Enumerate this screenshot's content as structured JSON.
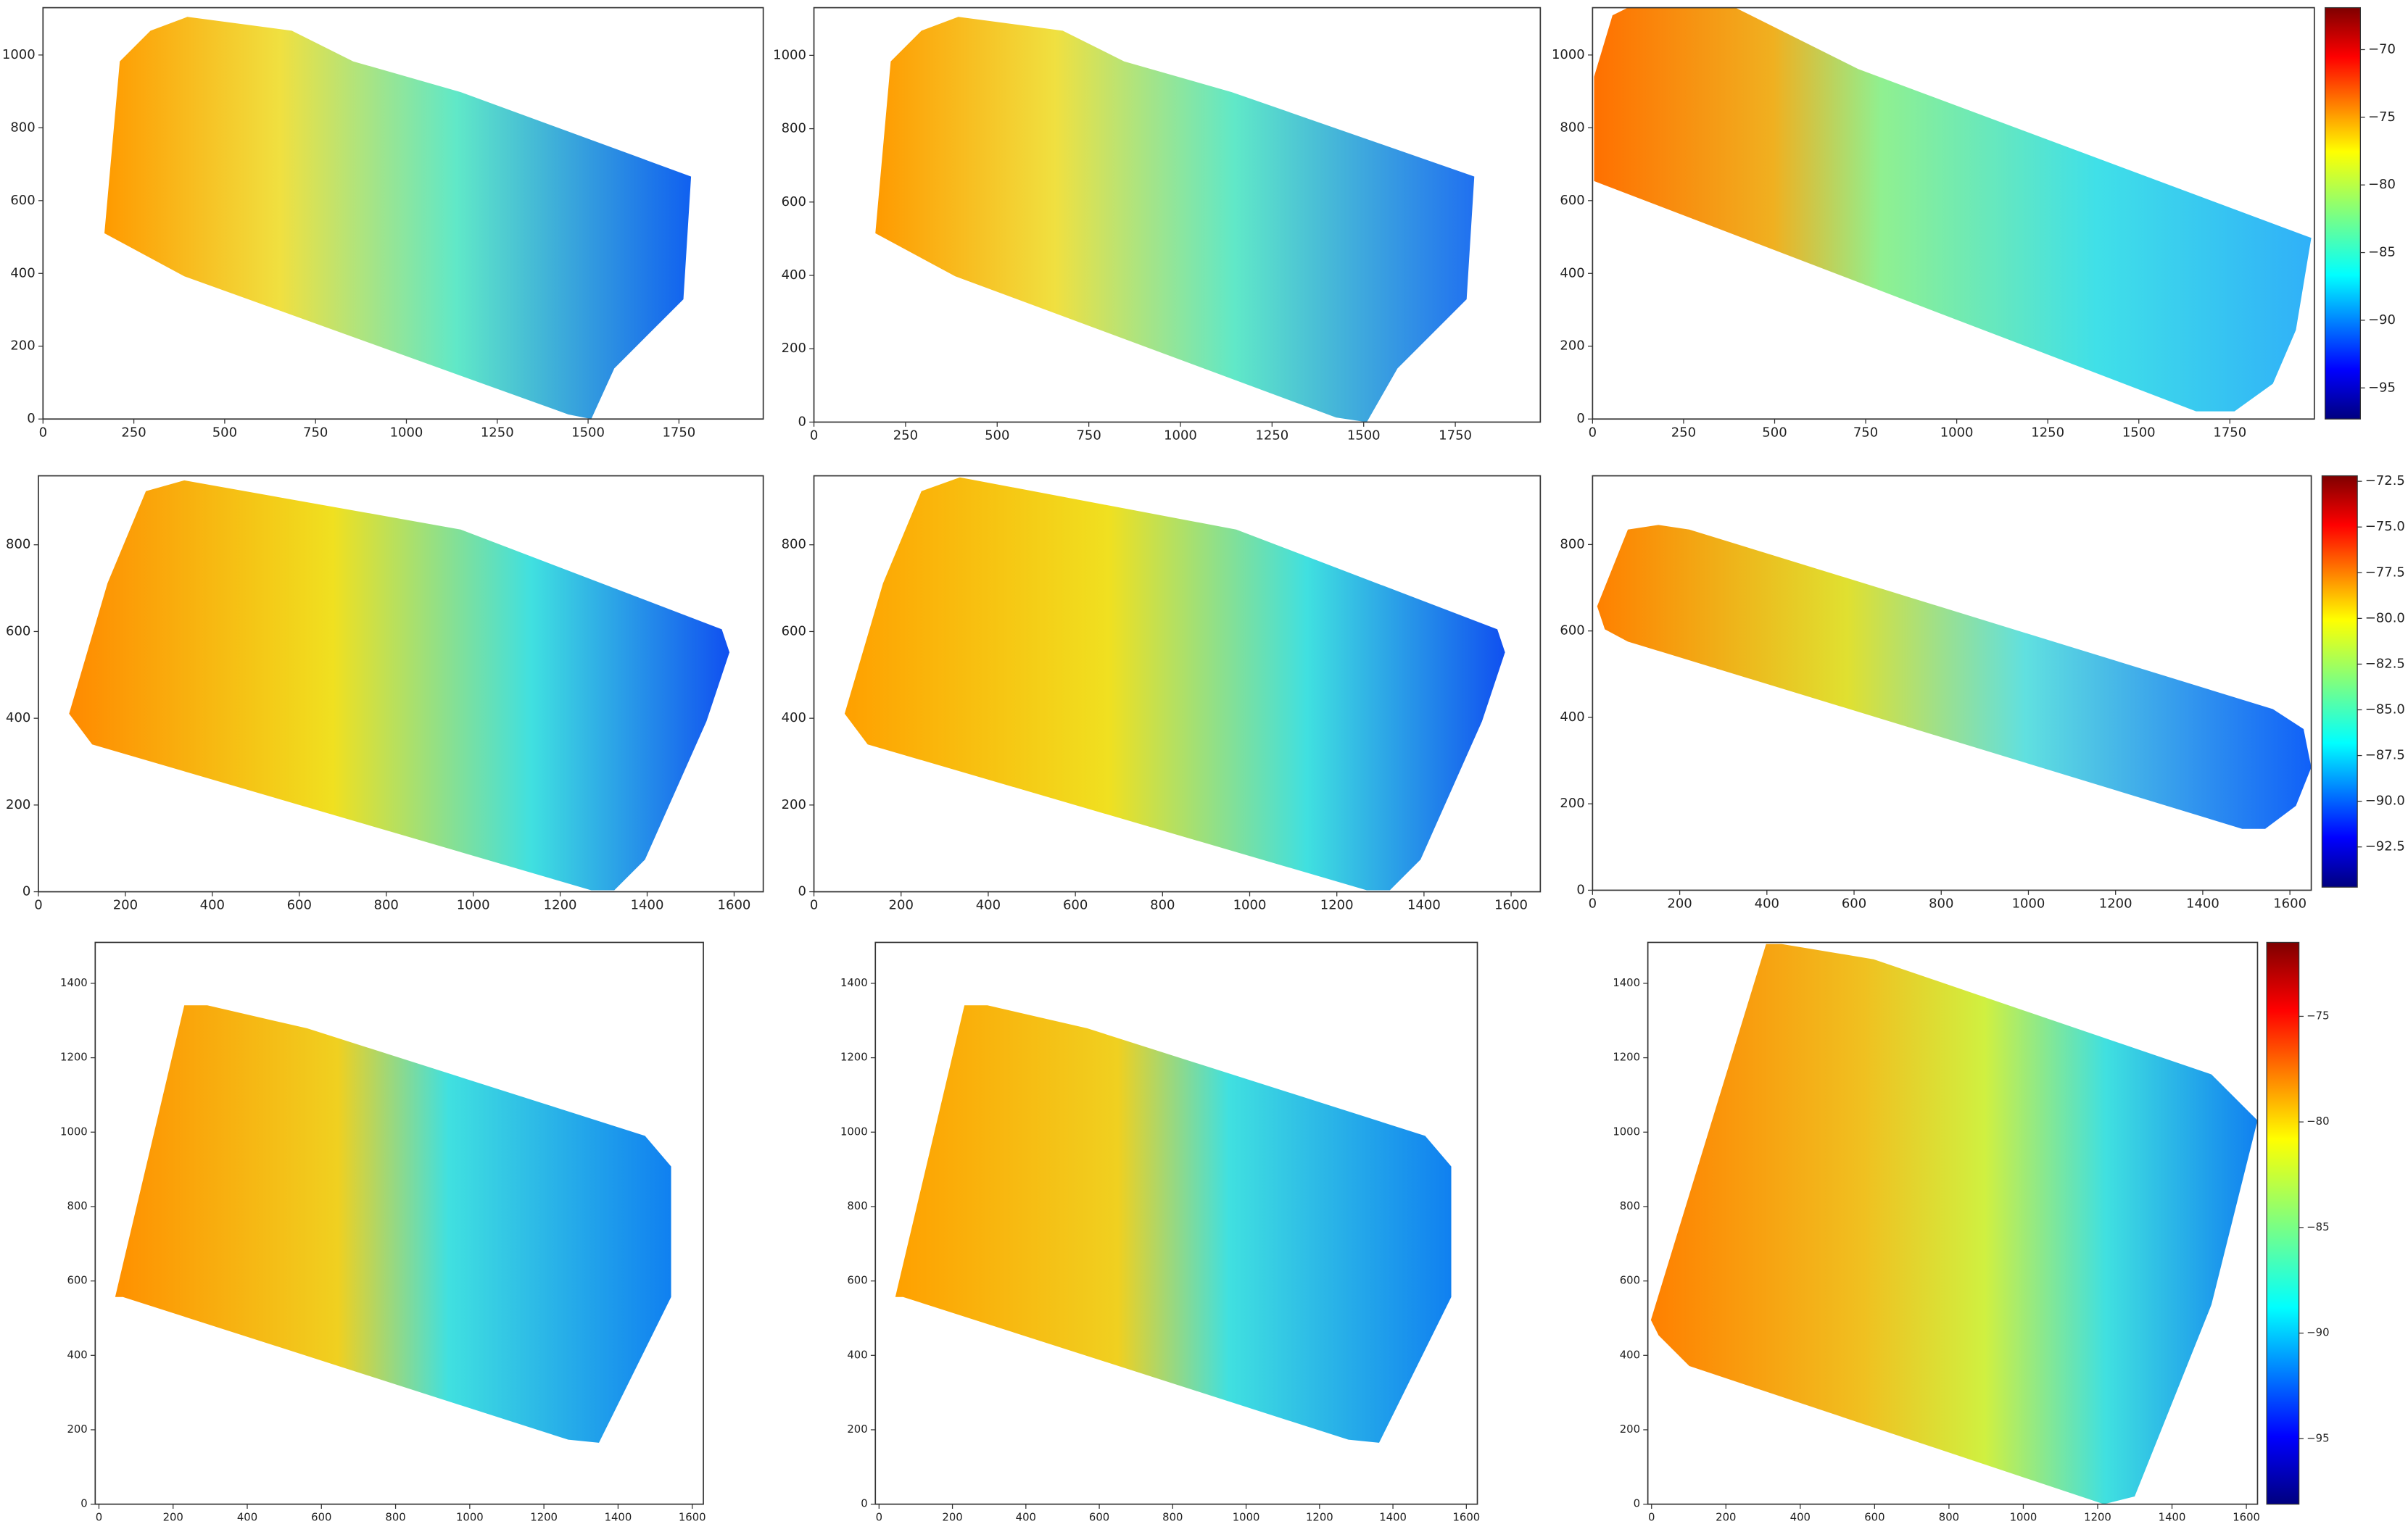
{
  "chart_data": [
    {
      "type": "heatmap",
      "colormap": "jet",
      "xlim": [
        0,
        1982
      ],
      "ylim": [
        0,
        1130
      ],
      "xticks": [
        0,
        250,
        500,
        750,
        1000,
        1250,
        1500,
        1750
      ],
      "yticks": [
        0,
        200,
        400,
        600,
        800,
        1000
      ]
    },
    {
      "type": "heatmap",
      "colormap": "jet",
      "xlim": [
        0,
        1982
      ],
      "ylim": [
        0,
        1130
      ],
      "xticks": [
        0,
        250,
        500,
        750,
        1000,
        1250,
        1500,
        1750
      ],
      "yticks": [
        0,
        200,
        400,
        600,
        800,
        1000
      ]
    },
    {
      "type": "heatmap",
      "colormap": "jet",
      "xlim": [
        0,
        1982
      ],
      "ylim": [
        0,
        1130
      ],
      "xticks": [
        0,
        250,
        500,
        750,
        1000,
        1250,
        1500,
        1750
      ],
      "yticks": [
        0,
        200,
        400,
        600,
        800,
        1000
      ],
      "colorbar": {
        "clim": [
          -97.3,
          -66.9
        ],
        "ticks": [
          {
            "value": -70,
            "label": "−70"
          },
          {
            "value": -75,
            "label": "−75"
          },
          {
            "value": -80,
            "label": "−80"
          },
          {
            "value": -85,
            "label": "−85"
          },
          {
            "value": -90,
            "label": "−90"
          },
          {
            "value": -95,
            "label": "−95"
          }
        ]
      }
    },
    {
      "type": "heatmap",
      "colormap": "jet",
      "xlim": [
        0,
        1667
      ],
      "ylim": [
        0,
        959
      ],
      "xticks": [
        0,
        200,
        400,
        600,
        800,
        1000,
        1200,
        1400,
        1600
      ],
      "yticks": [
        0,
        200,
        400,
        600,
        800
      ]
    },
    {
      "type": "heatmap",
      "colormap": "jet",
      "xlim": [
        0,
        1667
      ],
      "ylim": [
        0,
        959
      ],
      "xticks": [
        0,
        200,
        400,
        600,
        800,
        1000,
        1200,
        1400,
        1600
      ],
      "yticks": [
        0,
        200,
        400,
        600,
        800
      ]
    },
    {
      "type": "heatmap",
      "colormap": "jet",
      "xlim": [
        0,
        1649
      ],
      "ylim": [
        0,
        959
      ],
      "xticks": [
        0,
        200,
        400,
        600,
        800,
        1000,
        1200,
        1400,
        1600
      ],
      "yticks": [
        0,
        200,
        400,
        600,
        800
      ],
      "colorbar": {
        "clim": [
          -94.7,
          -72.2
        ],
        "ticks": [
          {
            "value": -72.5,
            "label": "−72.5"
          },
          {
            "value": -75,
            "label": "−75.0"
          },
          {
            "value": -77.5,
            "label": "−77.5"
          },
          {
            "value": -80,
            "label": "−80.0"
          },
          {
            "value": -82.5,
            "label": "−82.5"
          },
          {
            "value": -85,
            "label": "−85.0"
          },
          {
            "value": -87.5,
            "label": "−87.5"
          },
          {
            "value": -90,
            "label": "−90.0"
          },
          {
            "value": -92.5,
            "label": "−92.5"
          }
        ]
      }
    },
    {
      "type": "heatmap",
      "colormap": "jet",
      "xlim": [
        -10,
        1630
      ],
      "ylim": [
        0,
        1510
      ],
      "xticks": [
        0,
        200,
        400,
        600,
        800,
        1000,
        1200,
        1400,
        1600
      ],
      "yticks": [
        0,
        200,
        400,
        600,
        800,
        1000,
        1200,
        1400
      ]
    },
    {
      "type": "heatmap",
      "colormap": "jet",
      "xlim": [
        -10,
        1630
      ],
      "ylim": [
        0,
        1510
      ],
      "xticks": [
        0,
        200,
        400,
        600,
        800,
        1000,
        1200,
        1400,
        1600
      ],
      "yticks": [
        0,
        200,
        400,
        600,
        800,
        1000,
        1200,
        1400
      ]
    },
    {
      "type": "heatmap",
      "colormap": "jet",
      "xlim": [
        -10,
        1630
      ],
      "ylim": [
        0,
        1510
      ],
      "xticks": [
        0,
        200,
        400,
        600,
        800,
        1000,
        1200,
        1400,
        1600
      ],
      "yticks": [
        0,
        200,
        400,
        600,
        800,
        1000,
        1200,
        1400
      ],
      "colorbar": {
        "clim": [
          -98.1,
          -71.5
        ],
        "ticks": [
          {
            "value": -75,
            "label": "−75"
          },
          {
            "value": -80,
            "label": "−80"
          },
          {
            "value": -85,
            "label": "−85"
          },
          {
            "value": -90,
            "label": "−90"
          },
          {
            "value": -95,
            "label": "−95"
          }
        ]
      }
    }
  ]
}
